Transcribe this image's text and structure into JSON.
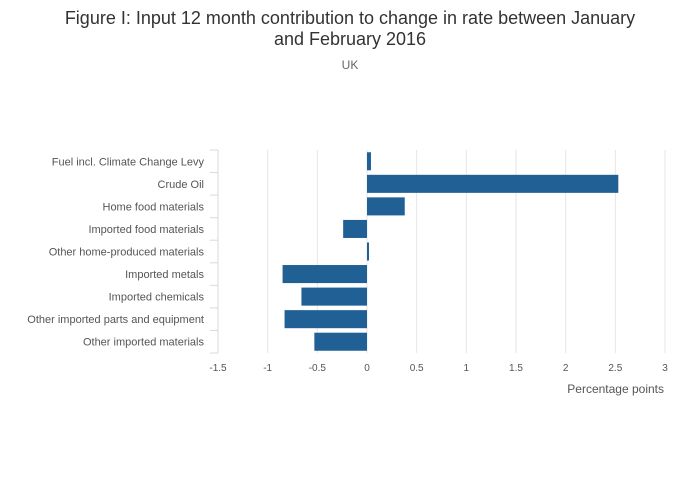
{
  "chart_data": {
    "type": "bar",
    "orientation": "horizontal",
    "title": "Figure I: Input 12 month contribution to change in rate between January and February 2016",
    "title_lines": [
      "Figure I: Input 12 month contribution to change in rate between January",
      "and February 2016"
    ],
    "subtitle": "UK",
    "xlabel": "Percentage points",
    "ylabel": "",
    "xlim": [
      -1.5,
      3
    ],
    "xticks": [
      -1.5,
      -1,
      -0.5,
      0,
      0.5,
      1,
      1.5,
      2,
      2.5,
      3
    ],
    "xtick_labels": [
      "-1.5",
      "-1",
      "-0.5",
      "0",
      "0.5",
      "1",
      "1.5",
      "2",
      "2.5",
      "3"
    ],
    "grid": true,
    "bar_color": "#206095",
    "categories": [
      "Fuel incl. Climate Change Levy",
      "Crude Oil",
      "Home food materials",
      "Imported food materials",
      "Other home-produced materials",
      "Imported metals",
      "Imported chemicals",
      "Other imported parts and equipment",
      "Other imported materials"
    ],
    "values": [
      0.04,
      2.53,
      0.38,
      -0.24,
      0.02,
      -0.85,
      -0.66,
      -0.83,
      -0.53
    ]
  }
}
